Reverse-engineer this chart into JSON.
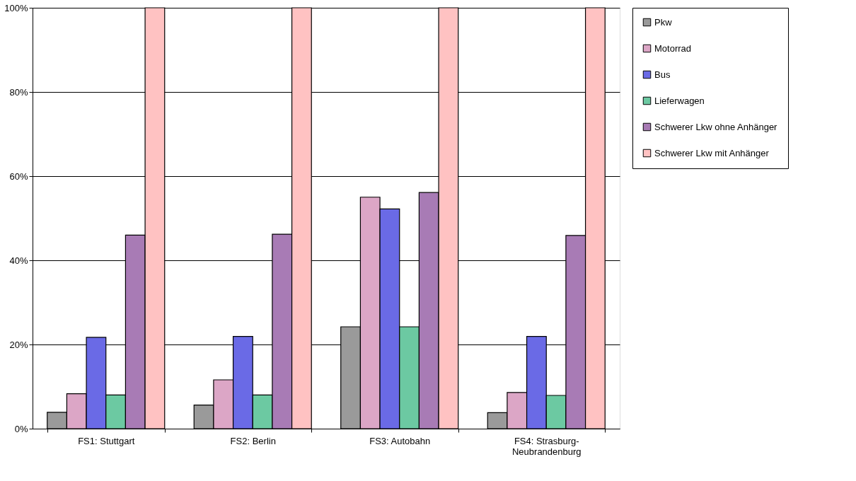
{
  "chart_data": {
    "type": "bar",
    "categories": [
      "FS1: Stuttgart",
      "FS2: Berlin",
      "FS3: Autobahn",
      "FS4: Strasburg-Neubrandenburg"
    ],
    "series": [
      {
        "name": "Pkw",
        "color": "#9a9a9a",
        "values": [
          3.9,
          5.6,
          24.2,
          3.8
        ]
      },
      {
        "name": "Motorrad",
        "color": "#dca6c6",
        "values": [
          8.3,
          11.6,
          55.0,
          8.6
        ]
      },
      {
        "name": "Bus",
        "color": "#6a6ae6",
        "values": [
          21.7,
          21.9,
          52.2,
          21.9
        ]
      },
      {
        "name": "Lieferwagen",
        "color": "#6cc9a2",
        "values": [
          8.0,
          8.0,
          24.2,
          7.9
        ]
      },
      {
        "name": "Schwerer Lkw ohne Anhänger",
        "color": "#a87bb5",
        "values": [
          46.0,
          46.2,
          56.1,
          45.9
        ]
      },
      {
        "name": "Schwerer Lkw mit Anhänger",
        "color": "#ffc2c2",
        "values": [
          100,
          100,
          100,
          100
        ]
      }
    ],
    "ylim": [
      0,
      100
    ],
    "yticks": [
      {
        "value": 0,
        "label": "0%"
      },
      {
        "value": 20,
        "label": "20%"
      },
      {
        "value": 40,
        "label": "40%"
      },
      {
        "value": 60,
        "label": "60%"
      },
      {
        "value": 80,
        "label": "80%"
      },
      {
        "value": 100,
        "label": "100%"
      }
    ],
    "grid": "y",
    "legend": "top right"
  }
}
